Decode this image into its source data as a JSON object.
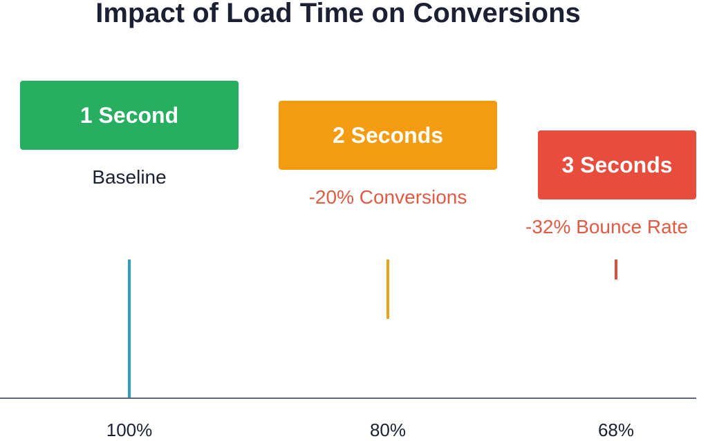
{
  "chart_data": {
    "type": "bar",
    "title": "Impact of Load Time on Conversions",
    "categories": [
      "1 Second",
      "2 Seconds",
      "3 Seconds"
    ],
    "values": [
      100,
      80,
      68
    ],
    "value_labels": [
      "100%",
      "80%",
      "68%"
    ],
    "annotations": [
      "Baseline",
      "-20% Conversions",
      "-32% Bounce Rate"
    ],
    "colors": [
      "#27ae60",
      "#f39c12",
      "#e74c3c"
    ],
    "bar_colors": [
      "#2e9fbf",
      "#e5a41c",
      "#d9513f"
    ],
    "annotation_colors": [
      "#1c2033",
      "#e05a44",
      "#e05a44"
    ],
    "ylim": [
      60,
      100
    ],
    "grid": false,
    "legend": "none"
  }
}
